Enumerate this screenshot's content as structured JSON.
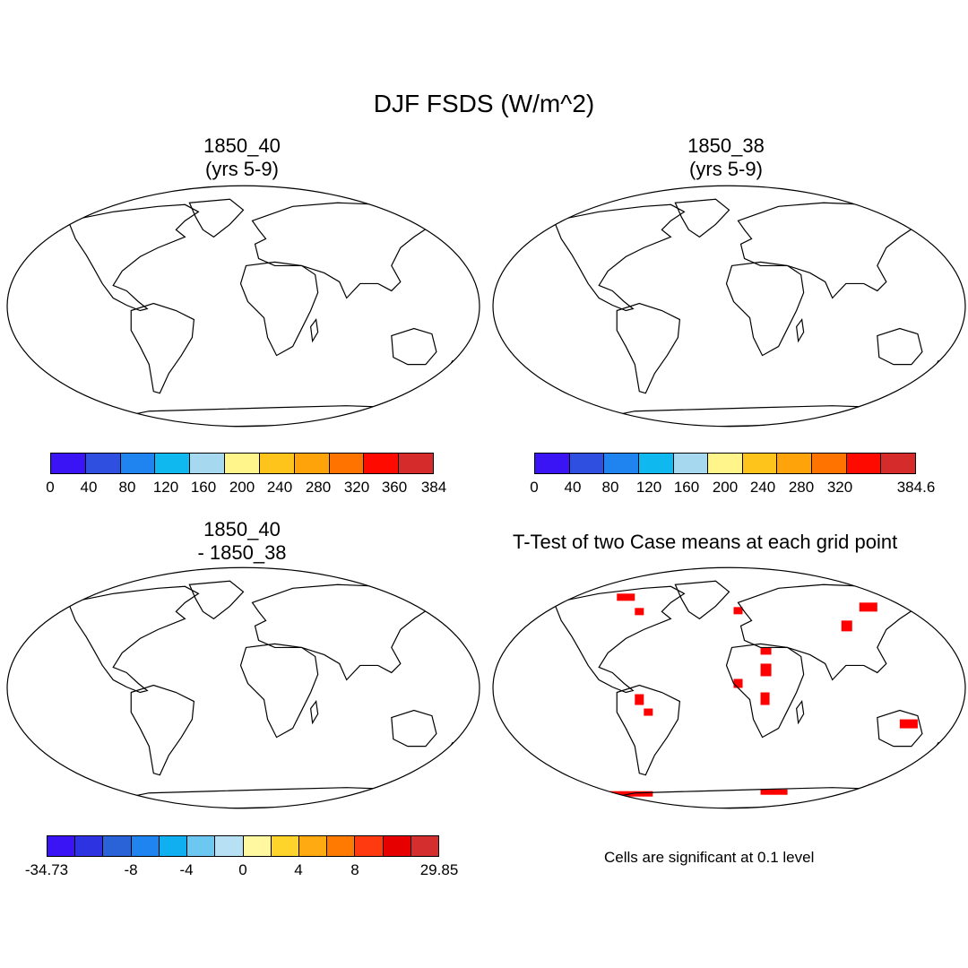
{
  "figure": {
    "title": "DJF FSDS (W/m^2)"
  },
  "panels": [
    {
      "title_line1": "1850_40",
      "title_line2": "(yrs 5-9)"
    },
    {
      "title_line1": "1850_38",
      "title_line2": "(yrs 5-9)"
    },
    {
      "title_line1": "1850_40",
      "title_line2": "- 1850_38"
    },
    {
      "title_line1": "T-Test of two Case means at each grid point"
    }
  ],
  "colorbars": {
    "case1": {
      "colors": [
        "#3a14f5",
        "#2e4fe0",
        "#1f84f0",
        "#10b8f0",
        "#a6d8f0",
        "#fff58a",
        "#ffc41c",
        "#ffa30a",
        "#ff7400",
        "#ff0a00",
        "#d62b2b"
      ],
      "ticks": [
        "0",
        "40",
        "80",
        "120",
        "160",
        "200",
        "240",
        "280",
        "320",
        "360",
        "384"
      ]
    },
    "case2": {
      "colors": [
        "#3a14f5",
        "#2e4fe0",
        "#1f84f0",
        "#10b8f0",
        "#a6d8f0",
        "#fff58a",
        "#ffc41c",
        "#ffa30a",
        "#ff7400",
        "#ff0a00",
        "#d62b2b"
      ],
      "ticks": [
        "0",
        "40",
        "80",
        "120",
        "160",
        "200",
        "240",
        "280",
        "320",
        "384.6"
      ]
    },
    "diff": {
      "colors": [
        "#3a14f5",
        "#2d33e0",
        "#2a62d8",
        "#1f84f0",
        "#10b0f0",
        "#6cc8f0",
        "#b8e0f5",
        "#fff8a0",
        "#ffd42a",
        "#ffaa10",
        "#ff7a00",
        "#ff3a10",
        "#e60000",
        "#d42e2e"
      ],
      "ticks": [
        "-34.73",
        "-8",
        "-4",
        "0",
        "4",
        "8",
        "29.85"
      ]
    }
  },
  "ttest": {
    "note": "Cells are significant at 0.1 level",
    "significant_color": "#ff0000"
  }
}
